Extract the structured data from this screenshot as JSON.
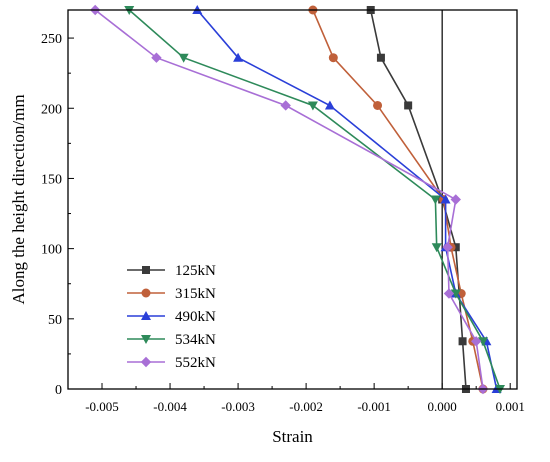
{
  "chart_data": {
    "type": "line",
    "title": "",
    "xlabel": "Strain",
    "ylabel": "Along the height direction/mm",
    "xlim": [
      -0.0055,
      0.0011
    ],
    "ylim": [
      0,
      270
    ],
    "xticks": [
      {
        "value": -0.005,
        "label": "-0.005"
      },
      {
        "value": -0.004,
        "label": "-0.004"
      },
      {
        "value": -0.003,
        "label": "-0.003"
      },
      {
        "value": -0.002,
        "label": "-0.002"
      },
      {
        "value": -0.001,
        "label": "-0.001"
      },
      {
        "value": 0.0,
        "label": "0.000"
      },
      {
        "value": 0.001,
        "label": "0.001"
      }
    ],
    "yticks": [
      {
        "value": 0,
        "label": "0"
      },
      {
        "value": 50,
        "label": "50"
      },
      {
        "value": 100,
        "label": "100"
      },
      {
        "value": 150,
        "label": "150"
      },
      {
        "value": 200,
        "label": "200"
      },
      {
        "value": 250,
        "label": "250"
      }
    ],
    "zero_line": 0,
    "grid": false,
    "legend_position": "lower-left",
    "series": [
      {
        "name": "125kN",
        "color": "#3a3a3a",
        "marker": "square",
        "points": [
          {
            "x": 0.00035,
            "y": 0
          },
          {
            "x": 0.0003,
            "y": 34
          },
          {
            "x": 0.00025,
            "y": 68
          },
          {
            "x": 0.0002,
            "y": 101
          },
          {
            "x": 0.0,
            "y": 135
          },
          {
            "x": -0.0005,
            "y": 202
          },
          {
            "x": -0.0009,
            "y": 236
          },
          {
            "x": -0.00105,
            "y": 270
          }
        ]
      },
      {
        "name": "315kN",
        "color": "#c0603a",
        "marker": "circle",
        "points": [
          {
            "x": 0.0006,
            "y": 0
          },
          {
            "x": 0.00045,
            "y": 34
          },
          {
            "x": 0.00028,
            "y": 68
          },
          {
            "x": 0.00013,
            "y": 101
          },
          {
            "x": 2e-05,
            "y": 135
          },
          {
            "x": -0.00095,
            "y": 202
          },
          {
            "x": -0.0016,
            "y": 236
          },
          {
            "x": -0.0019,
            "y": 270
          }
        ]
      },
      {
        "name": "490kN",
        "color": "#2a3fd8",
        "marker": "triangle-up",
        "points": [
          {
            "x": 0.0008,
            "y": 0
          },
          {
            "x": 0.00065,
            "y": 34
          },
          {
            "x": 0.0002,
            "y": 68
          },
          {
            "x": 5e-05,
            "y": 101
          },
          {
            "x": 5e-05,
            "y": 135
          },
          {
            "x": -0.00165,
            "y": 202
          },
          {
            "x": -0.003,
            "y": 236
          },
          {
            "x": -0.0036,
            "y": 270
          }
        ]
      },
      {
        "name": "534kN",
        "color": "#2e8a5a",
        "marker": "triangle-down",
        "points": [
          {
            "x": 0.00085,
            "y": 0
          },
          {
            "x": 0.0006,
            "y": 34
          },
          {
            "x": 0.0002,
            "y": 68
          },
          {
            "x": -8e-05,
            "y": 101
          },
          {
            "x": -0.0001,
            "y": 135
          },
          {
            "x": -0.0019,
            "y": 202
          },
          {
            "x": -0.0038,
            "y": 236
          },
          {
            "x": -0.0046,
            "y": 270
          }
        ]
      },
      {
        "name": "552kN",
        "color": "#a86fd6",
        "marker": "diamond",
        "points": [
          {
            "x": 0.0006,
            "y": 0
          },
          {
            "x": 0.0005,
            "y": 34
          },
          {
            "x": 0.0001,
            "y": 68
          },
          {
            "x": 8e-05,
            "y": 101
          },
          {
            "x": 0.0002,
            "y": 135
          },
          {
            "x": -0.0023,
            "y": 202
          },
          {
            "x": -0.0042,
            "y": 236
          },
          {
            "x": -0.0051,
            "y": 270
          }
        ]
      }
    ]
  }
}
